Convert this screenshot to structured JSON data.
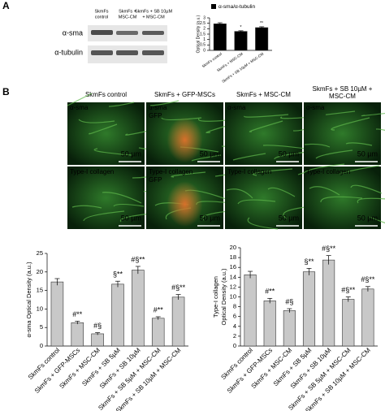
{
  "panel_a": {
    "label": "A",
    "blot": {
      "lanes": [
        [
          "SkmFs",
          "control"
        ],
        [
          "SkmFs +",
          "MSC-CM"
        ],
        [
          "SkmFs + SB 10µM",
          "+ MSC-CM"
        ]
      ],
      "rows": [
        "α-sma",
        "α-tubulin"
      ]
    }
  },
  "panel_b": {
    "label": "B",
    "columns": [
      [
        "SkmFs control"
      ],
      [
        "SkmFs + GFP-MSCs"
      ],
      [
        "SkmFs + MSC-CM"
      ],
      [
        "SkmFs + SB 10µM +",
        "MSC-CM"
      ]
    ],
    "rows": [
      [
        {
          "labels": [
            "α-sma"
          ],
          "scale": "50 µm"
        },
        {
          "labels": [
            "α-sma",
            "GFP"
          ],
          "scale": "50 µm"
        },
        {
          "labels": [
            "α-sma"
          ],
          "scale": "50 µm"
        },
        {
          "labels": [
            "α-sma"
          ],
          "scale": "50 µm"
        }
      ],
      [
        {
          "labels": [
            "Type-I collagen"
          ],
          "scale": "50 µm"
        },
        {
          "labels": [
            "Type-I collagen",
            "GFP"
          ],
          "scale": "50 µm"
        },
        {
          "labels": [
            "Type-I collagen"
          ],
          "scale": "50 µm"
        },
        {
          "labels": [
            "Type-I collagen"
          ],
          "scale": "50 µm"
        }
      ]
    ]
  },
  "chart_data": [
    {
      "type": "bar",
      "legend": "α-sma/α-tubulin",
      "ylabel": [
        "Optical Density (a.u.)"
      ],
      "categories": [
        "SkmFs control",
        "SkmFs + MSC-CM",
        "SkmFs + SB 10µM + MSC-CM"
      ],
      "values": [
        2.45,
        1.75,
        2.1
      ],
      "errors": [
        0.1,
        0.06,
        0.08
      ],
      "annotations": [
        null,
        "*",
        "*°"
      ],
      "color": "#000000",
      "ylim": [
        0,
        3
      ],
      "yticks": [
        0,
        0.5,
        1,
        1.5,
        2,
        2.5,
        3
      ]
    },
    {
      "type": "bar",
      "ylabel": [
        "α-sma Optical Density (a.u.)"
      ],
      "categories": [
        "SkmFs control",
        "SkmFs + GFP-MSCs",
        "SkmFs + MSC-CM",
        "SkmFs + SB 5µM",
        "SkmFs + SB 10µM",
        "SkmFs + SB 5µM + MSC-CM",
        "SkmFs + SB 10µM + MSC-CM"
      ],
      "values": [
        17.3,
        6.3,
        3.3,
        16.7,
        20.5,
        7.5,
        13.2
      ],
      "errors": [
        0.9,
        0.4,
        0.3,
        0.8,
        1.0,
        0.4,
        0.7
      ],
      "annotations": [
        null,
        "#**",
        "#§",
        "§**",
        "#§**",
        "#**",
        "#§**"
      ],
      "color": "#c8c8c8",
      "ylim": [
        0,
        25
      ],
      "yticks": [
        0,
        5,
        10,
        15,
        20,
        25
      ]
    },
    {
      "type": "bar",
      "ylabel": [
        "Type-I collagen",
        "Optical Density (a.u.)"
      ],
      "categories": [
        "SkmFs control",
        "SkmFs + GFP-MSCs",
        "SkmFs + MSC-CM",
        "SkmFs + SB 5µM",
        "SkmFs + SB 10µM",
        "SkmFs + SB 5µM + MSC-CM",
        "SkmFs + SB 10µM + MSC-CM"
      ],
      "values": [
        14.5,
        9.2,
        7.2,
        15.1,
        17.5,
        9.5,
        11.6
      ],
      "errors": [
        0.7,
        0.5,
        0.4,
        0.7,
        0.9,
        0.5,
        0.5
      ],
      "annotations": [
        null,
        "#**",
        "#§",
        "§**",
        "#§**",
        "#§**",
        "#§**"
      ],
      "color": "#c8c8c8",
      "ylim": [
        0,
        20
      ],
      "yticks": [
        0,
        2,
        4,
        6,
        8,
        10,
        12,
        14,
        16,
        18,
        20
      ]
    }
  ]
}
